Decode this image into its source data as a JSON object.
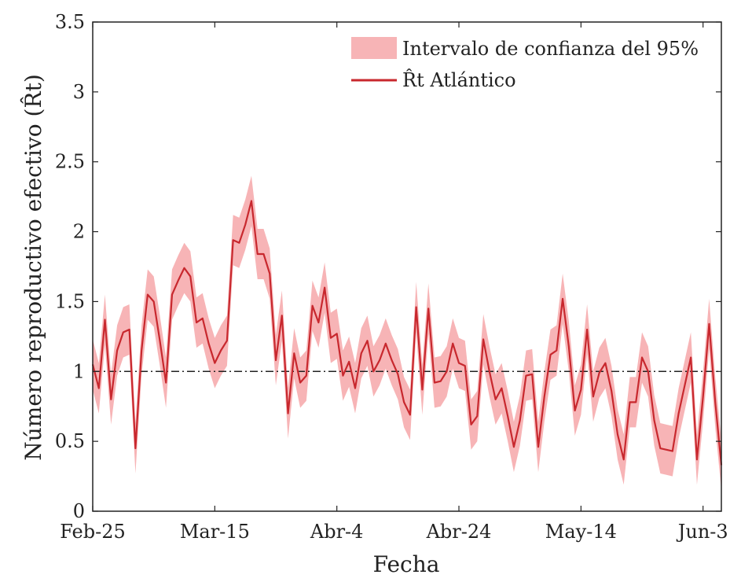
{
  "colors": {
    "line": "#c8282e",
    "band": "#f7b4b6",
    "reference": "#222222",
    "axis": "#222222"
  },
  "chart_data": {
    "type": "line",
    "xlabel": "Fecha",
    "ylabel": "Número reproductivo efectivo (R̂t)",
    "x_ticks": [
      "Feb-25",
      "Mar-15",
      "Abr-4",
      "Abr-24",
      "May-14",
      "Jun-3"
    ],
    "x_tick_days": [
      0,
      20,
      40,
      60,
      80,
      100
    ],
    "y_ticks": [
      "0",
      "0.5",
      "1",
      "1.5",
      "2",
      "2.5",
      "3",
      "3.5"
    ],
    "xlim": [
      0,
      103
    ],
    "ylim": [
      0,
      3.5
    ],
    "reference_line": 1,
    "grid": false,
    "legend_position": "top-right",
    "legend": [
      {
        "label": "Intervalo de confianza del 95%",
        "kind": "band"
      },
      {
        "label": "R̂t Atlántico",
        "kind": "line"
      }
    ],
    "series": [
      {
        "name": "R̂t Atlántico",
        "values": [
          1.05,
          0.88,
          1.37,
          0.8,
          1.15,
          1.28,
          1.3,
          0.45,
          1.15,
          1.55,
          1.5,
          1.22,
          0.92,
          1.55,
          1.65,
          1.74,
          1.68,
          1.35,
          1.38,
          1.2,
          1.06,
          1.15,
          1.22,
          1.94,
          1.92,
          2.05,
          2.22,
          1.84,
          1.84,
          1.7,
          1.08,
          1.4,
          0.7,
          1.13,
          0.92,
          0.97,
          1.47,
          1.35,
          1.6,
          1.24,
          1.27,
          0.97,
          1.07,
          0.88,
          1.13,
          1.22,
          1.0,
          1.08,
          1.2,
          1.08,
          0.98,
          0.78,
          0.69,
          1.46,
          0.87,
          1.45,
          0.92,
          0.93,
          1.0,
          1.2,
          1.06,
          1.04,
          0.62,
          0.68,
          1.23,
          1.0,
          0.8,
          0.88,
          0.68,
          0.46,
          0.65,
          0.97,
          0.98,
          0.46,
          0.82,
          1.12,
          1.15,
          1.52,
          1.18,
          0.72,
          0.87,
          1.3,
          0.82,
          0.99,
          1.06,
          0.86,
          0.55,
          0.37,
          0.78,
          0.78,
          1.1,
          1.0,
          0.65,
          0.45,
          0.44,
          0.43,
          0.7,
          0.9,
          1.1,
          0.37,
          0.82,
          1.34,
          0.78,
          0.33
        ]
      }
    ],
    "ci_half_width": 0.18
  }
}
